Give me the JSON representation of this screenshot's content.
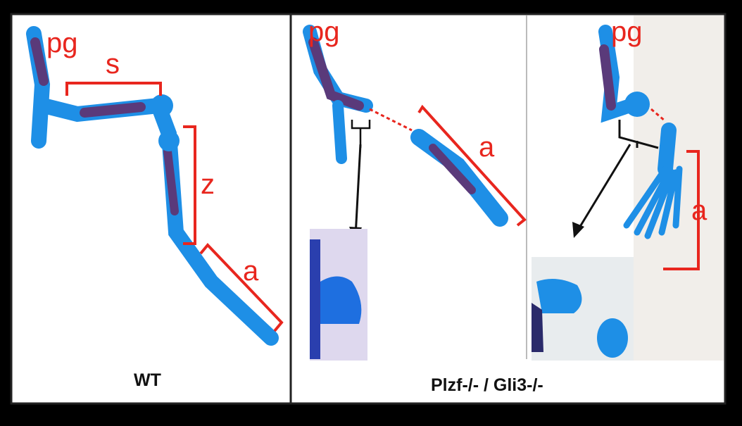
{
  "panels": [
    {
      "caption": "WT",
      "labels": [
        "pg",
        "s",
        "z",
        "a"
      ]
    },
    {
      "caption": "Plzf-/- / Gli3-/-",
      "labels": [
        "pg",
        "a",
        "pg",
        "a"
      ]
    }
  ]
}
